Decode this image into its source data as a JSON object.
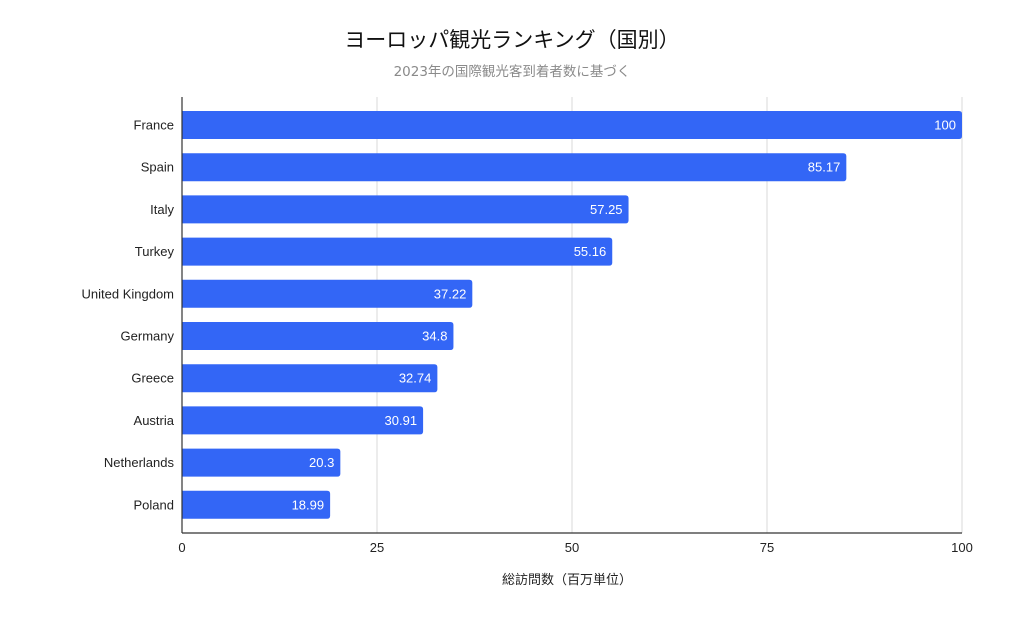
{
  "chart_data": {
    "type": "bar",
    "orientation": "horizontal",
    "title": "ヨーロッパ観光ランキング（国別）",
    "subtitle": "2023年の国際観光客到着者数に基づく",
    "xlabel": "総訪問数（百万単位）",
    "ylabel": "",
    "categories": [
      "France",
      "Spain",
      "Italy",
      "Turkey",
      "United Kingdom",
      "Germany",
      "Greece",
      "Austria",
      "Netherlands",
      "Poland"
    ],
    "values": [
      100,
      85.17,
      57.25,
      55.16,
      37.22,
      34.8,
      32.74,
      30.91,
      20.3,
      18.99
    ],
    "value_labels": [
      "100",
      "85.17",
      "57.25",
      "55.16",
      "37.22",
      "34.8",
      "32.74",
      "30.91",
      "20.3",
      "18.99"
    ],
    "xlim": [
      0,
      100
    ],
    "xticks": [
      0,
      25,
      50,
      75,
      100
    ],
    "xtick_labels": [
      "0",
      "25",
      "50",
      "75",
      "100"
    ],
    "grid": true,
    "legend": "none",
    "bar_color": "#3366f6"
  }
}
